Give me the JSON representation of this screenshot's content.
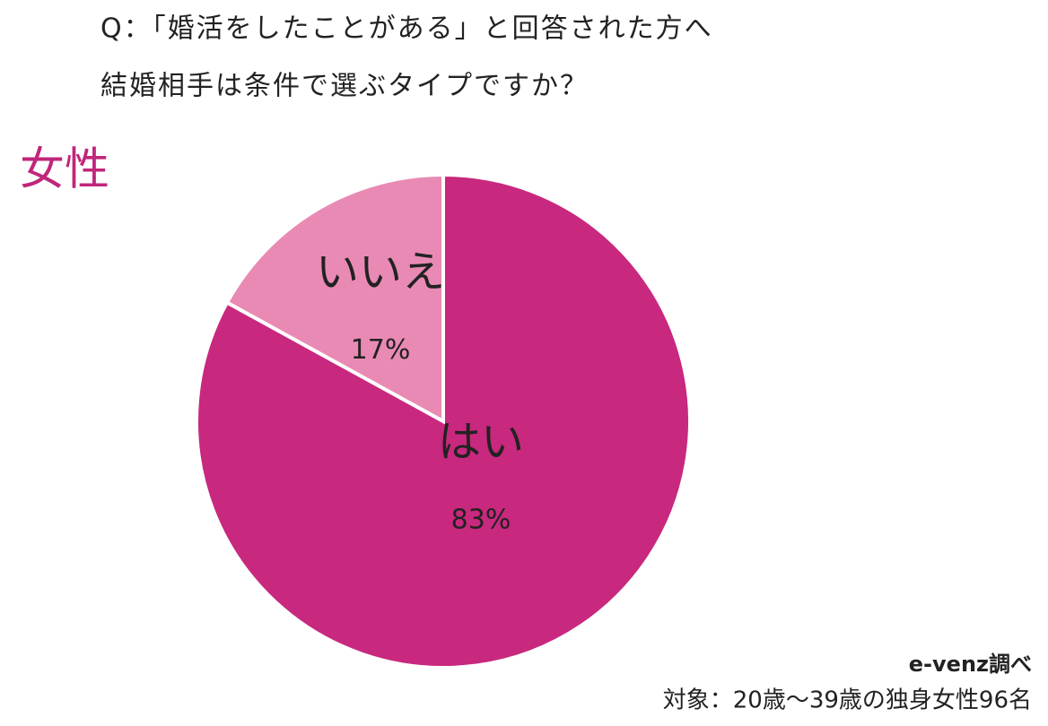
{
  "chart_data": {
    "type": "pie",
    "title": "Q：「婚活をしたことがある」と回答された方へ",
    "subtitle": "結婚相手は条件で選ぶタイプですか？",
    "group_label": "女性",
    "categories": [
      "はい",
      "いいえ"
    ],
    "values": [
      83,
      17
    ],
    "value_labels": [
      "83%",
      "17%"
    ],
    "colors": [
      "#c8287e",
      "#e98ab4"
    ],
    "source": "e-venz調べ",
    "note": "対象：20歳〜39歳の独身女性96名"
  }
}
